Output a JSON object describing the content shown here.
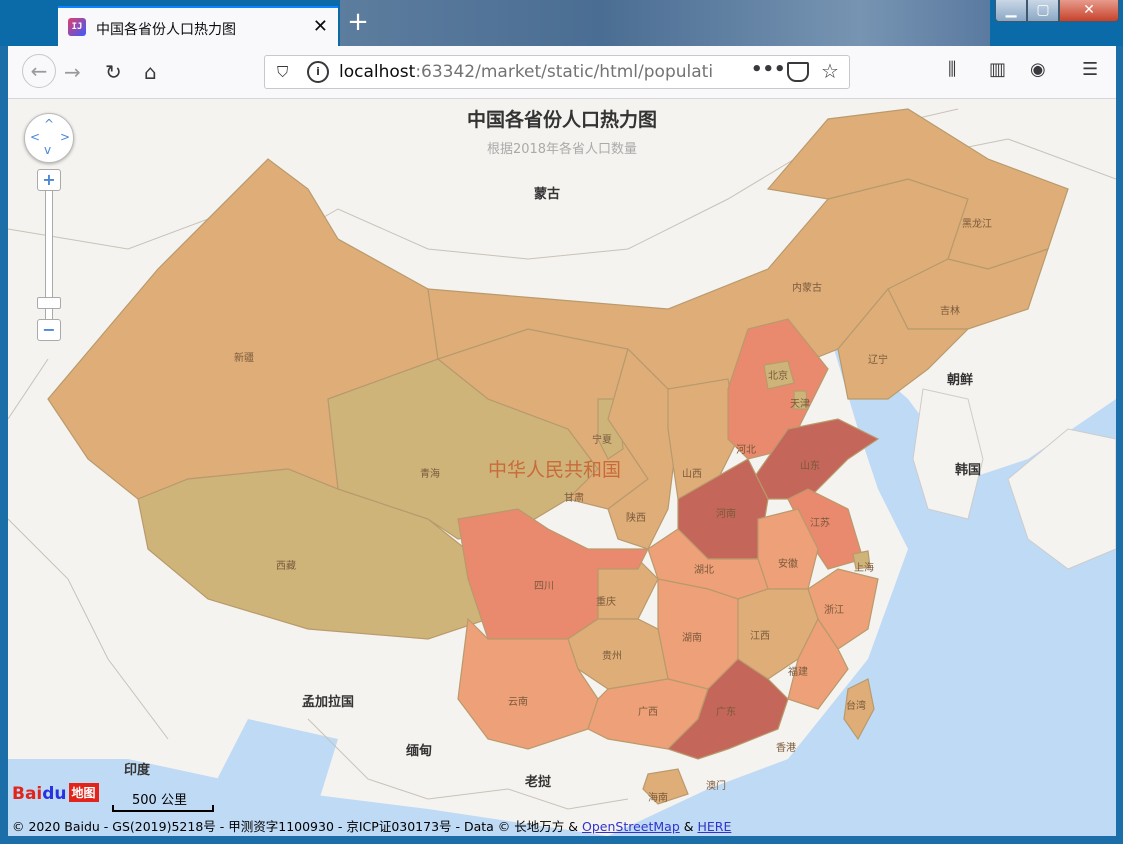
{
  "browser": {
    "tab_title": "中国各省份人口热力图",
    "favicon_text": "IJ",
    "url_host": "localhost",
    "url_rest": ":63342/market/static/html/populati",
    "more_label": "•••"
  },
  "chart": {
    "title": "中国各省份人口热力图",
    "subtitle": "根据2018年各省人口数量"
  },
  "map_labels": {
    "countries": {
      "mongolia": "蒙古",
      "north_korea": "朝鲜",
      "south_korea": "韩国",
      "bangladesh": "孟加拉国",
      "myanmar": "缅甸",
      "india": "印度",
      "laos": "老挝",
      "china": "中华人民共和国"
    },
    "provinces": {
      "heilongjiang": "黑龙江",
      "jilin": "吉林",
      "liaoning": "辽宁",
      "neimenggu": "内蒙古",
      "beijing": "北京",
      "tianjin": "天津",
      "hebei": "河北",
      "shandong": "山东",
      "shanxi": "山西",
      "henan": "河南",
      "jiangsu": "江苏",
      "shanghai": "上海",
      "anhui": "安徽",
      "zhejiang": "浙江",
      "hubei": "湖北",
      "jiangxi": "江西",
      "fujian": "福建",
      "taiwan": "台湾",
      "hunan": "湖南",
      "guangdong": "广东",
      "xianggang": "香港",
      "aomen": "澳门",
      "hainan": "海南",
      "guangxi": "广西",
      "guizhou": "贵州",
      "yunnan": "云南",
      "chongqing": "重庆",
      "sichuan": "四川",
      "shaanxi": "陕西",
      "gansu": "甘肃",
      "ningxia": "宁夏",
      "qinghai": "青海",
      "xinjiang": "新疆",
      "xizang": "西藏"
    }
  },
  "colors": {
    "very_high": "#c4665a",
    "high": "#e9896e",
    "mid_high": "#eea078",
    "mid": "#dfae78",
    "low": "#cfb47a",
    "water": "#bfdaf5",
    "land": "#f5f3ef"
  },
  "map_controls": {
    "zoom_in": "+",
    "zoom_out": "−"
  },
  "footer": {
    "logo_bai": "Bai",
    "logo_du": "du",
    "logo_map": "地图",
    "scale": "500 公里",
    "copyright": "© 2020 Baidu - GS(2019)5218号 - 甲测资字1100930 - 京ICP证030173号 - Data © 长地万方 &",
    "osm": "OpenStreetMap",
    "amp": "&",
    "here": "HERE"
  }
}
